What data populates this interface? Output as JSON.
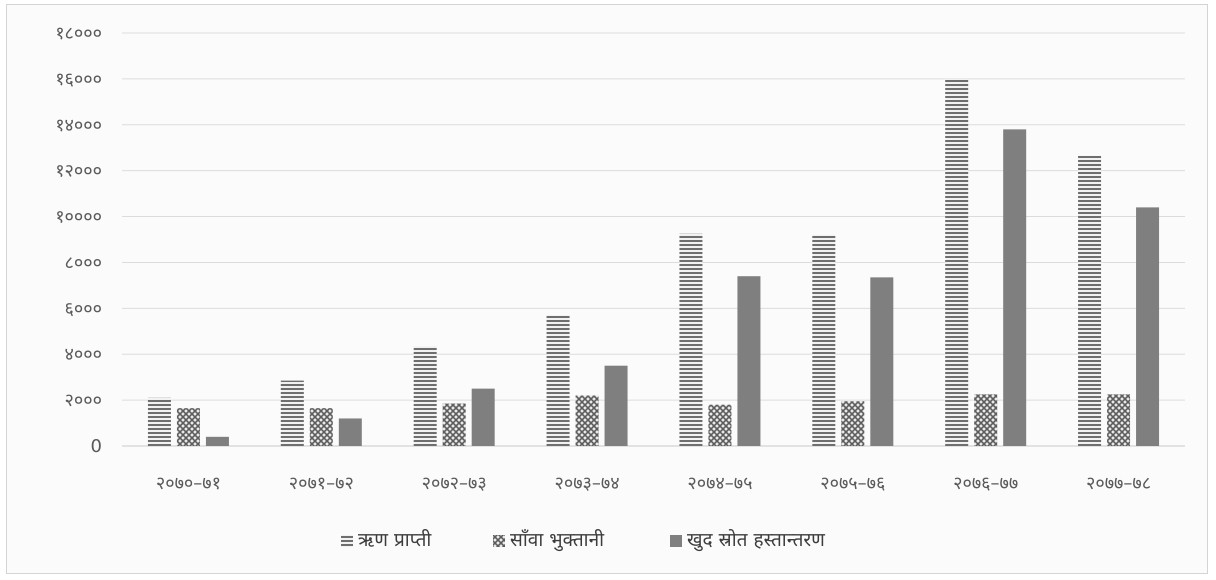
{
  "chart_data": {
    "type": "bar",
    "categories": [
      "२०७०–७१",
      "२०७१–७२",
      "२०७२–७३",
      "२०७३–७४",
      "२०७४–७५",
      "२०७५–७६",
      "२०७६–७७",
      "२०७७–७८"
    ],
    "series": [
      {
        "name": "ऋण प्राप्ती",
        "values": [
          2100,
          2850,
          4350,
          5700,
          9250,
          9200,
          16000,
          12650
        ],
        "pattern": "horizontal-lines"
      },
      {
        "name": "साँवा भुक्तानी",
        "values": [
          1650,
          1650,
          1850,
          2200,
          1800,
          1950,
          2250,
          2250
        ],
        "pattern": "crosshatch"
      },
      {
        "name": "खुद स्रोत हस्तान्तरण",
        "values": [
          400,
          1200,
          2500,
          3500,
          7400,
          7350,
          13800,
          10400
        ],
        "pattern": "solid-grey"
      }
    ],
    "yticks": [
      "0",
      "२०००",
      "४०००",
      "६०००",
      "८०००",
      "१००००",
      "१२०००",
      "१४०००",
      "१६०००",
      "१८०००"
    ],
    "ylim": [
      0,
      18000
    ],
    "grid": true,
    "legend_position": "bottom",
    "title": "",
    "xlabel": "",
    "ylabel": ""
  }
}
